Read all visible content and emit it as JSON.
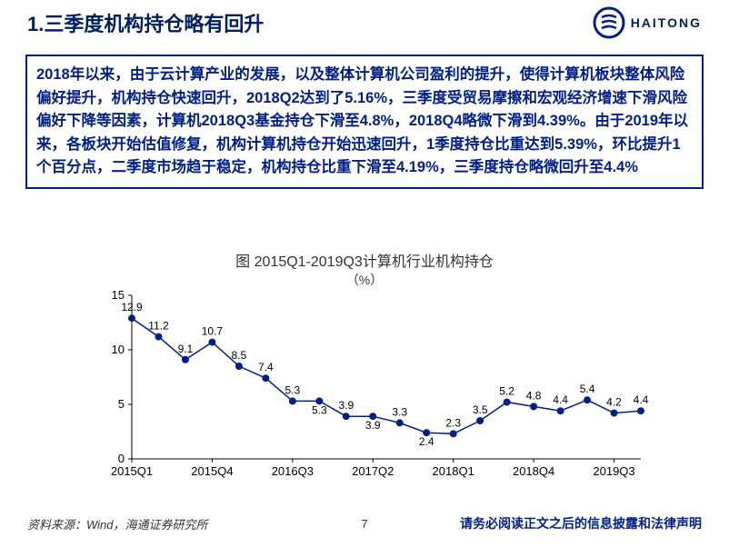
{
  "header": {
    "title": "1.三季度机构持仓略有回升",
    "logo_text": "HAITONG"
  },
  "text_box": {
    "content": "2018年以来，由于云计算产业的发展，以及整体计算机公司盈利的提升，使得计算机板块整体风险偏好提升，机构持仓快速回升，2018Q2达到了5.16%，三季度受贸易摩擦和宏观经济增速下滑风险偏好下降等因素，计算机2018Q3基金持仓下滑至4.8%，2018Q4略微下滑到4.39%。由于2019年以来，各板块开始估值修复，机构计算机持仓开始迅速回升，1季度持仓比重达到5.39%，环比提升1个百分点，二季度市场趋于稳定，机构持仓比重下滑至4.19%，三季度持仓略微回升至4.4%"
  },
  "chart": {
    "title": "图 2015Q1-2019Q3计算机行业机构持仓",
    "subtitle": "（%）",
    "type": "line",
    "x_labels": [
      "2015Q1",
      "2015Q4",
      "2016Q3",
      "2017Q2",
      "2018Q1",
      "2018Q4",
      "2019Q3"
    ],
    "y_ticks": [
      0,
      5,
      10,
      15
    ],
    "ylim": [
      0,
      15
    ],
    "series": {
      "values": [
        12.9,
        11.2,
        9.1,
        10.7,
        8.5,
        7.4,
        5.3,
        5.3,
        3.9,
        3.9,
        3.3,
        2.4,
        2.3,
        3.5,
        5.2,
        4.8,
        4.4,
        5.4,
        4.2,
        4.4
      ],
      "labels": [
        "12.9",
        "11.2",
        "9.1",
        "10.7",
        "8.5",
        "7.4",
        "5.3",
        "5.3",
        "3.9",
        "3.9",
        "3.3",
        "2.4",
        "2.3",
        "3.5",
        "5.2",
        "4.8",
        "4.4",
        "5.4",
        "4.2",
        "4.4"
      ],
      "line_color": "#001f87",
      "marker_color": "#001f87",
      "marker_size": 4,
      "line_width": 1.5
    },
    "axis_color": "#000000",
    "tick_fontsize": 13,
    "value_label_fontsize": 12,
    "grid_color": "#cccccc",
    "background": "#ffffff"
  },
  "footer": {
    "source": "资料来源：Wind，海通证券研究所",
    "page": "7",
    "disclaimer": "请务必阅读正文之后的信息披露和法律声明"
  }
}
